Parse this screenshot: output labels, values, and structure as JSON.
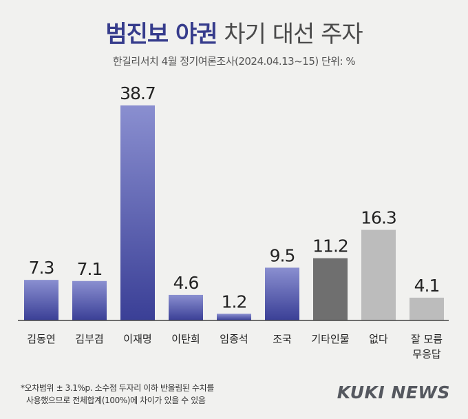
{
  "header": {
    "title_bold": "범진보 야권",
    "title_light": "차기 대선 주자",
    "subtitle": "한길리서치 4월 정기여론조사(2024.04.13~15) 단위: %"
  },
  "footnote": {
    "line1": "*오차범위 ± 3.1%p. 소수점 두자리 이하 반올림된 수치를",
    "line2": "사용했으므로 전체합계(100%)에 차이가 있을 수 있음"
  },
  "logo": {
    "text": "KUKI NEWS"
  },
  "colors": {
    "candidate_top": "#8a8fd0",
    "candidate_bottom": "#3a3f96",
    "other": "#6f6f6f",
    "none": "#bcbcbc",
    "unknown": "#bcbcbc"
  },
  "chart_data": {
    "type": "bar",
    "title": "범진보 야권 차기 대선 주자",
    "subtitle": "한길리서치 4월 정기여론조사(2024.04.13~15) 단위: %",
    "categories": [
      "김동연",
      "김부겸",
      "이재명",
      "이탄희",
      "임종석",
      "조국",
      "기타인물",
      "없다",
      "잘 모름 무응답"
    ],
    "category_lines": [
      [
        "김동연"
      ],
      [
        "김부겸"
      ],
      [
        "이재명"
      ],
      [
        "이탄희"
      ],
      [
        "임종석"
      ],
      [
        "조국"
      ],
      [
        "기타인물"
      ],
      [
        "없다"
      ],
      [
        "잘 모름",
        "무응답"
      ]
    ],
    "values": [
      7.3,
      7.1,
      38.7,
      4.6,
      1.2,
      9.5,
      11.2,
      16.3,
      4.1
    ],
    "labels": [
      "7.3",
      "7.1",
      "38.7",
      "4.6",
      "1.2",
      "9.5",
      "11.2",
      "16.3",
      "4.1"
    ],
    "bar_style": [
      "candidate",
      "candidate",
      "candidate",
      "candidate",
      "candidate",
      "candidate",
      "other",
      "none",
      "unknown"
    ],
    "ylim": [
      0,
      38.7
    ],
    "xlabel": "",
    "ylabel": ""
  }
}
